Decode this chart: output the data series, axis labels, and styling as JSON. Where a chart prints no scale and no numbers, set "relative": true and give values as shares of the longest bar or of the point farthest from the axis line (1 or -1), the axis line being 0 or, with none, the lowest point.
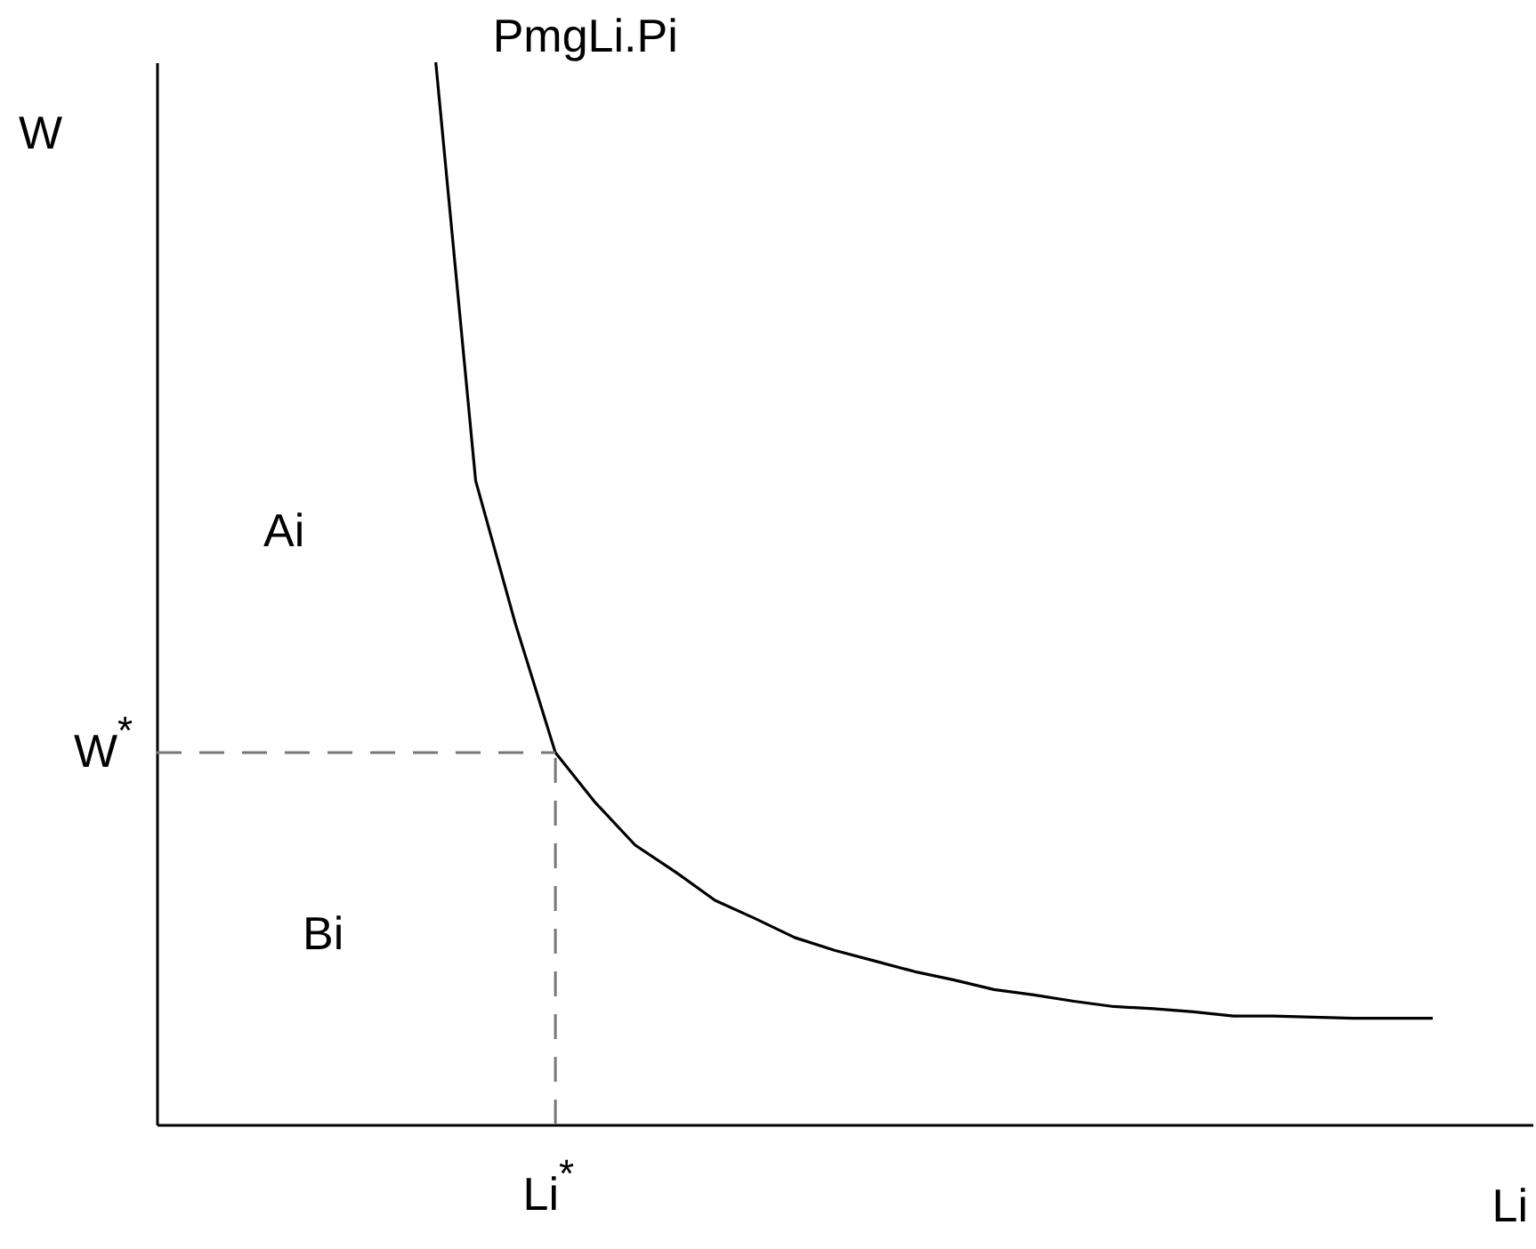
{
  "chart_data": {
    "type": "line",
    "xlabel": "Li",
    "ylabel": "W",
    "relative": true,
    "categories": [
      null,
      null,
      null,
      null,
      null,
      null,
      null,
      null,
      null,
      null,
      null,
      null,
      null,
      null,
      null,
      null,
      null,
      null,
      null,
      null,
      null,
      null,
      null,
      null,
      null,
      null,
      null,
      null,
      null,
      null,
      null,
      null,
      null,
      null,
      null
    ],
    "series": [
      {
        "name": "PmgLi.Pi",
        "color": "#000000",
        "values": [
          null,
          null,
          null,
          null,
          null,
          null,
          null,
          1,
          0.606,
          0.471,
          0.35,
          0.303,
          0.263,
          0.238,
          0.211,
          0.194,
          0.176,
          0.164,
          0.154,
          0.144,
          0.136,
          0.127,
          0.122,
          0.116,
          0.111,
          0.109,
          0.106,
          0.102,
          0.102,
          0.101,
          0.1,
          0.1,
          0.1,
          null,
          null
        ]
      }
    ],
    "ref_lines": [
      {
        "axis": "y",
        "value": 0.35,
        "label": "W$^{*}$",
        "color": "#777777",
        "line_style": "dashed"
      },
      {
        "axis": "x",
        "label": "Li$^{*}$",
        "color": "#777777",
        "line_style": "dashed"
      }
    ],
    "annotations": [
      "Ai",
      "Bi"
    ]
  }
}
